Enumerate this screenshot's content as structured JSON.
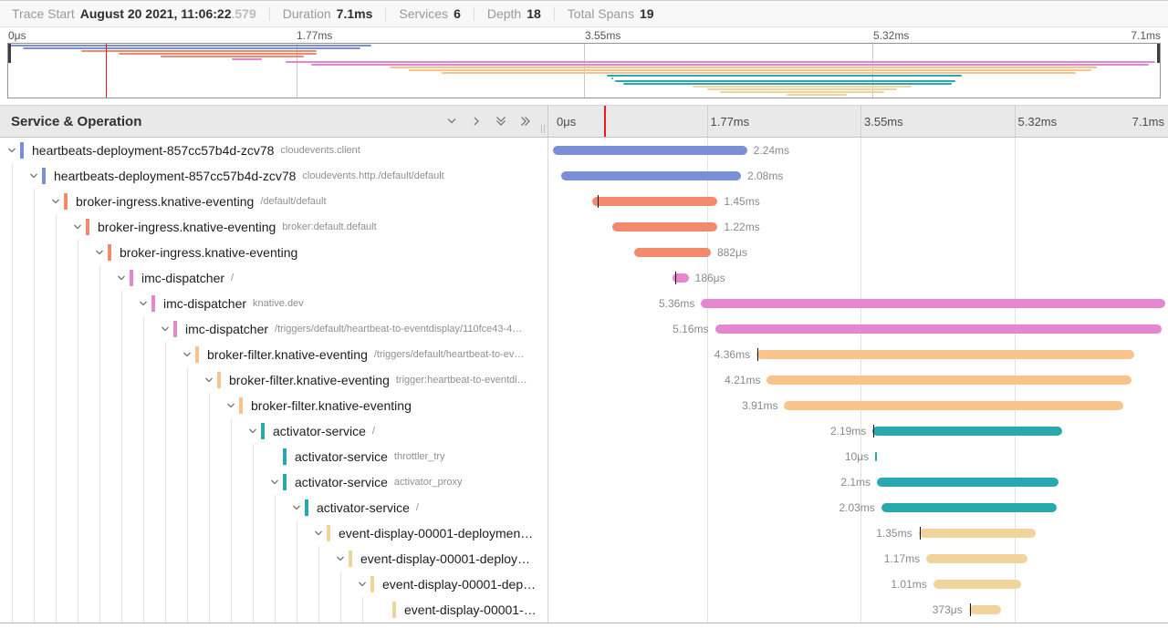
{
  "topbar": {
    "trace_start_label": "Trace Start",
    "trace_start_value": "August 20 2021, 11:06:22",
    "trace_start_fraction": ".579",
    "metrics": [
      {
        "label": "Duration",
        "value": "7.1ms"
      },
      {
        "label": "Services",
        "value": "6"
      },
      {
        "label": "Depth",
        "value": "18"
      },
      {
        "label": "Total Spans",
        "value": "19"
      }
    ]
  },
  "timeline": {
    "total_ms": 7.1,
    "tick_labels": [
      "0μs",
      "1.77ms",
      "3.55ms",
      "5.32ms",
      "7.1ms"
    ],
    "cursor_ms": 0.6
  },
  "table_header": {
    "title": "Service & Operation",
    "icons": [
      "chevron-down-icon",
      "chevron-right-icon",
      "double-chevron-down-icon",
      "double-chevron-right-icon"
    ]
  },
  "colors": {
    "blue": "#7A8FD5",
    "salmon": "#F28A6E",
    "pink": "#E487D0",
    "light_orange": "#F8C48C",
    "teal": "#29A9AD",
    "yellow": "#F0D49B",
    "cursor_red": "#E81C1C",
    "log_tick": "#151515"
  },
  "spans": [
    {
      "service": "heartbeats-deployment-857cc57b4d-zcv78",
      "operation": "cloudevents.client",
      "color": "blue",
      "depth": 0,
      "has_children": true,
      "start_ms": 0,
      "duration_ms": 2.24,
      "duration_label": "2.24ms",
      "label_side": "right"
    },
    {
      "service": "heartbeats-deployment-857cc57b4d-zcv78",
      "operation": "cloudevents.http./default/default",
      "color": "blue",
      "depth": 1,
      "has_children": true,
      "start_ms": 0.09,
      "duration_ms": 2.08,
      "duration_label": "2.08ms",
      "label_side": "right"
    },
    {
      "service": "broker-ingress.knative-eventing",
      "operation": "/default/default",
      "color": "salmon",
      "depth": 2,
      "has_children": true,
      "start_ms": 0.45,
      "duration_ms": 1.45,
      "duration_label": "1.45ms",
      "label_side": "right",
      "tick_ms": 0.52
    },
    {
      "service": "broker-ingress.knative-eventing",
      "operation": "broker:default.default",
      "color": "salmon",
      "depth": 3,
      "has_children": true,
      "start_ms": 0.68,
      "duration_ms": 1.22,
      "duration_label": "1.22ms",
      "label_side": "right"
    },
    {
      "service": "broker-ingress.knative-eventing",
      "operation": "",
      "color": "salmon",
      "depth": 4,
      "has_children": true,
      "start_ms": 0.94,
      "duration_ms": 0.882,
      "duration_label": "882μs",
      "label_side": "right"
    },
    {
      "service": "imc-dispatcher",
      "operation": "/",
      "color": "pink",
      "depth": 5,
      "has_children": true,
      "start_ms": 1.38,
      "duration_ms": 0.186,
      "duration_label": "186μs",
      "label_side": "right",
      "tick_ms": 1.41
    },
    {
      "service": "imc-dispatcher",
      "operation": "knative.dev",
      "color": "pink",
      "depth": 6,
      "has_children": true,
      "start_ms": 1.71,
      "duration_ms": 5.36,
      "duration_label": "5.36ms",
      "label_side": "left"
    },
    {
      "service": "imc-dispatcher",
      "operation": "/triggers/default/heartbeat-to-eventdisplay/110fce43-4…",
      "color": "pink",
      "depth": 7,
      "has_children": true,
      "start_ms": 1.87,
      "duration_ms": 5.16,
      "duration_label": "5.16ms",
      "label_side": "left"
    },
    {
      "service": "broker-filter.knative-eventing",
      "operation": "/triggers/default/heartbeat-to-ev…",
      "color": "light_orange",
      "depth": 8,
      "has_children": true,
      "start_ms": 2.35,
      "duration_ms": 4.36,
      "duration_label": "4.36ms",
      "label_side": "left",
      "tick_ms": 2.36
    },
    {
      "service": "broker-filter.knative-eventing",
      "operation": "trigger:heartbeat-to-eventdi…",
      "color": "light_orange",
      "depth": 9,
      "has_children": true,
      "start_ms": 2.47,
      "duration_ms": 4.21,
      "duration_label": "4.21ms",
      "label_side": "left"
    },
    {
      "service": "broker-filter.knative-eventing",
      "operation": "",
      "color": "light_orange",
      "depth": 10,
      "has_children": true,
      "start_ms": 2.67,
      "duration_ms": 3.91,
      "duration_label": "3.91ms",
      "label_side": "left"
    },
    {
      "service": "activator-service",
      "operation": "/",
      "color": "teal",
      "depth": 11,
      "has_children": true,
      "start_ms": 3.69,
      "duration_ms": 2.19,
      "duration_label": "2.19ms",
      "label_side": "left",
      "tick_ms": 3.7
    },
    {
      "service": "activator-service",
      "operation": "throttler_try",
      "color": "teal",
      "depth": 12,
      "has_children": false,
      "start_ms": 3.72,
      "duration_ms": 0.01,
      "duration_label": "10μs",
      "label_side": "left"
    },
    {
      "service": "activator-service",
      "operation": "activator_proxy",
      "color": "teal",
      "depth": 12,
      "has_children": true,
      "start_ms": 3.74,
      "duration_ms": 2.1,
      "duration_label": "2.1ms",
      "label_side": "left"
    },
    {
      "service": "activator-service",
      "operation": "/",
      "color": "teal",
      "depth": 13,
      "has_children": true,
      "start_ms": 3.79,
      "duration_ms": 2.03,
      "duration_label": "2.03ms",
      "label_side": "left"
    },
    {
      "service": "event-display-00001-deploymen…",
      "operation": "",
      "color": "yellow",
      "depth": 14,
      "has_children": true,
      "start_ms": 4.22,
      "duration_ms": 1.35,
      "duration_label": "1.35ms",
      "label_side": "left",
      "tick_ms": 4.23
    },
    {
      "service": "event-display-00001-deploy…",
      "operation": "",
      "color": "yellow",
      "depth": 15,
      "has_children": true,
      "start_ms": 4.31,
      "duration_ms": 1.17,
      "duration_label": "1.17ms",
      "label_side": "left"
    },
    {
      "service": "event-display-00001-dep…",
      "operation": "",
      "color": "yellow",
      "depth": 16,
      "has_children": true,
      "start_ms": 4.39,
      "duration_ms": 1.01,
      "duration_label": "1.01ms",
      "label_side": "left"
    },
    {
      "service": "event-display-00001-…",
      "operation": "",
      "color": "yellow",
      "depth": 17,
      "has_children": false,
      "start_ms": 4.8,
      "duration_ms": 0.373,
      "duration_label": "373μs",
      "label_side": "left",
      "tick_ms": 4.81
    }
  ]
}
